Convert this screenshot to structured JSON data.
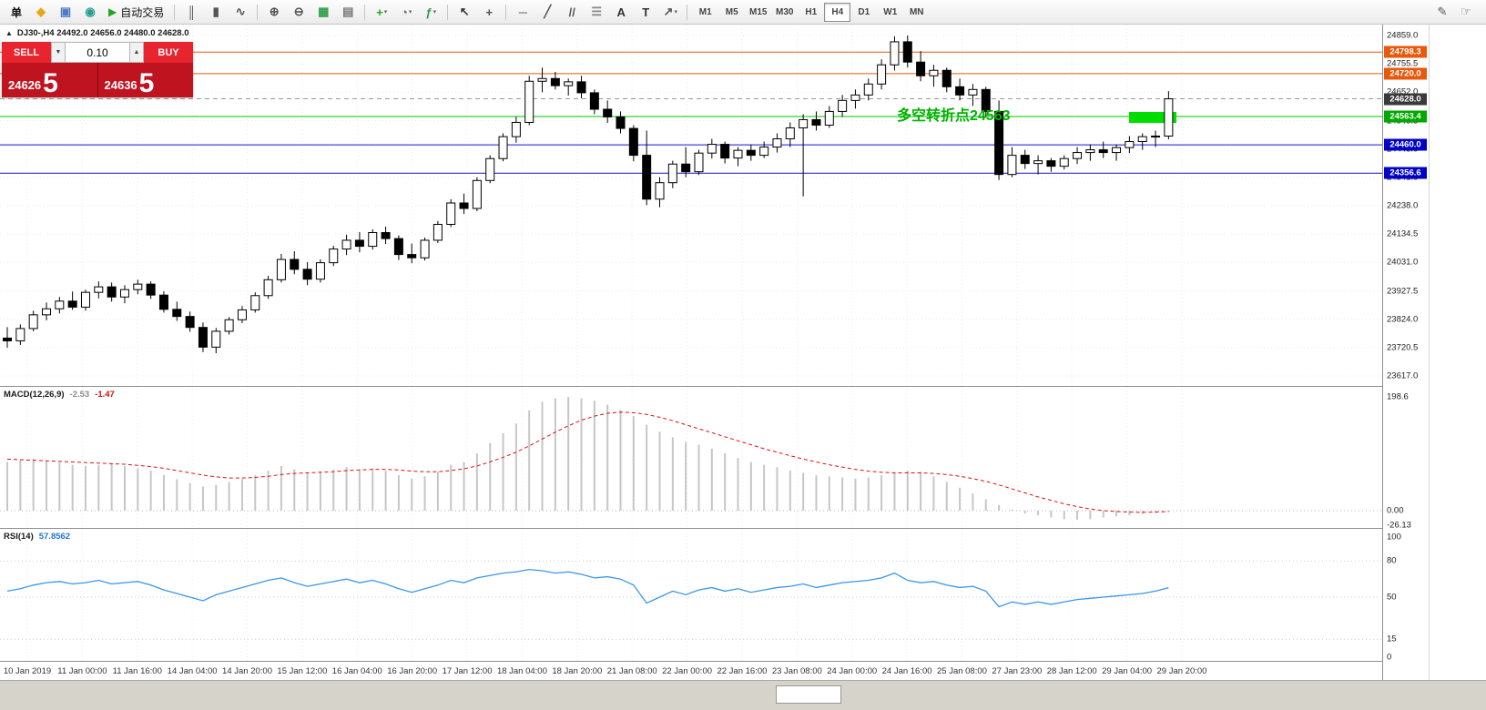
{
  "toolbar": {
    "items": [
      {
        "type": "label",
        "name": "order-label",
        "text": "单"
      },
      {
        "type": "icon",
        "name": "new-order-icon",
        "glyph": "◆",
        "color": "#e6a817"
      },
      {
        "type": "icon",
        "name": "terminal-icon",
        "glyph": "▣",
        "color": "#4d79c7"
      },
      {
        "type": "icon",
        "name": "market-watch-icon",
        "glyph": "◉",
        "color": "#2a9d8f"
      },
      {
        "type": "button",
        "name": "auto-trading-button",
        "glyph": "▶",
        "glyph_color": "#1caa1c",
        "text": "自动交易"
      },
      {
        "type": "sep"
      },
      {
        "type": "icon",
        "name": "ohlc-bars-icon",
        "glyph": "║",
        "color": "#555555"
      },
      {
        "type": "icon",
        "name": "candlestick-chart-icon",
        "glyph": "▮",
        "color": "#555555"
      },
      {
        "type": "icon",
        "name": "line-chart-icon",
        "glyph": "∿",
        "color": "#555555"
      },
      {
        "type": "sep"
      },
      {
        "type": "icon",
        "name": "zoom-in-icon",
        "glyph": "⊕",
        "color": "#555555"
      },
      {
        "type": "icon",
        "name": "zoom-out-icon",
        "glyph": "⊖",
        "color": "#555555"
      },
      {
        "type": "icon",
        "name": "tile-windows-icon",
        "glyph": "▦",
        "color": "#2f9e44"
      },
      {
        "type": "icon",
        "name": "cascade-windows-icon",
        "glyph": "▤",
        "color": "#777777"
      },
      {
        "type": "sep"
      },
      {
        "type": "icon",
        "name": "new-chart-icon",
        "glyph": "+",
        "color": "#1caa1c",
        "dropdown": true
      },
      {
        "type": "icon",
        "name": "periods-icon",
        "glyph": "◔",
        "color": "#666666",
        "dropdown": true
      },
      {
        "type": "icon",
        "name": "indicators-icon",
        "glyph": "ƒ",
        "color": "#2f9e44",
        "dropdown": true
      },
      {
        "type": "sep"
      },
      {
        "type": "icon",
        "name": "cursor-icon",
        "glyph": "↖",
        "color": "#333333"
      },
      {
        "type": "icon",
        "name": "crosshair-icon",
        "glyph": "+",
        "color": "#555555"
      },
      {
        "type": "sep"
      },
      {
        "type": "icon",
        "name": "horizontal-line-icon",
        "glyph": "─",
        "color": "#555555"
      },
      {
        "type": "icon",
        "name": "trendline-icon",
        "glyph": "╱",
        "color": "#555555"
      },
      {
        "type": "icon",
        "name": "equidistant-channel-icon",
        "glyph": "//",
        "color": "#555555"
      },
      {
        "type": "icon",
        "name": "fibonacci-icon",
        "glyph": "☰",
        "color": "#888888"
      },
      {
        "type": "icon",
        "name": "text-icon",
        "glyph": "A",
        "color": "#333333"
      },
      {
        "type": "icon",
        "name": "text-label-icon",
        "glyph": "T",
        "color": "#333333"
      },
      {
        "type": "icon",
        "name": "arrows-icon",
        "glyph": "↗",
        "color": "#555555",
        "dropdown": true
      },
      {
        "type": "sep"
      }
    ],
    "timeframes": [
      {
        "label": "M1"
      },
      {
        "label": "M5"
      },
      {
        "label": "M15"
      },
      {
        "label": "M30"
      },
      {
        "label": "H1"
      },
      {
        "label": "H4",
        "active": true
      },
      {
        "label": "D1"
      },
      {
        "label": "W1"
      },
      {
        "label": "MN"
      }
    ],
    "right_icons": [
      {
        "name": "pencil-icon",
        "glyph": "✎"
      },
      {
        "name": "hand-icon",
        "glyph": "☞"
      }
    ]
  },
  "chart": {
    "panel_toggle_glyph": "▲",
    "header": "DJ30-,H4 24492.0 24656.0 24480.0 24628.0",
    "trade_panel": {
      "sell_label": "SELL",
      "buy_label": "BUY",
      "volume": "0.10",
      "spin_down_glyph": "▼",
      "spin_up_glyph": "▲",
      "sell_price_small": "24626",
      "sell_price_big": "5",
      "buy_price_small": "24636",
      "buy_price_big": "5"
    },
    "annotation": {
      "text": "多空转折点24563",
      "color": "#00b300"
    },
    "hlines": [
      {
        "price": 24798.3,
        "color": "#e8590c",
        "label": "24798.3"
      },
      {
        "price": 24720.0,
        "color": "#e8590c",
        "label": "24720.0"
      },
      {
        "price": 24628.0,
        "color": "#999999",
        "label": "24628.0",
        "style": "dashed",
        "tag_color": "#3a3a3a"
      },
      {
        "price": 24563.4,
        "color": "#00c400",
        "label": "24563.4",
        "tag_color": "#00a800"
      },
      {
        "price": 24460.0,
        "color": "#1414cc",
        "label": "24460.0",
        "tag_color": "#0000c8"
      },
      {
        "price": 24356.6,
        "color": "#1414cc",
        "label": "24356.6",
        "tag_color": "#0000c8"
      }
    ],
    "axis_labels": [
      "24859.0",
      "24755.5",
      "24652.0",
      "24548.5",
      "24445.0",
      "24341.5",
      "24238.0",
      "24134.5",
      "24031.0",
      "23927.5",
      "23824.0",
      "23720.5",
      "23617.0"
    ],
    "green_box": {
      "price_low": 24540,
      "price_high": 24580,
      "color": "#00dd00"
    }
  },
  "chart_data": {
    "type": "candlestick",
    "symbol": "DJ30-",
    "timeframe": "H4",
    "ohlc_current": {
      "open": 24492.0,
      "high": 24656.0,
      "low": 24480.0,
      "close": 24628.0
    },
    "y_range": [
      23617.0,
      24859.0
    ],
    "time_labels": [
      "10 Jan 2019",
      "11 Jan 00:00",
      "11 Jan 16:00",
      "14 Jan 04:00",
      "14 Jan 20:00",
      "15 Jan 12:00",
      "16 Jan 04:00",
      "16 Jan 20:00",
      "17 Jan 12:00",
      "18 Jan 04:00",
      "18 Jan 20:00",
      "21 Jan 08:00",
      "22 Jan 00:00",
      "22 Jan 16:00",
      "23 Jan 08:00",
      "24 Jan 00:00",
      "24 Jan 16:00",
      "25 Jan 08:00",
      "27 Jan 23:00",
      "28 Jan 12:00",
      "29 Jan 04:00",
      "29 Jan 20:00"
    ],
    "candles": [
      [
        23755,
        23795,
        23720,
        23745
      ],
      [
        23745,
        23805,
        23730,
        23790
      ],
      [
        23790,
        23855,
        23780,
        23840
      ],
      [
        23840,
        23885,
        23820,
        23862
      ],
      [
        23862,
        23905,
        23845,
        23890
      ],
      [
        23890,
        23925,
        23858,
        23868
      ],
      [
        23868,
        23932,
        23855,
        23922
      ],
      [
        23922,
        23962,
        23900,
        23942
      ],
      [
        23942,
        23958,
        23888,
        23905
      ],
      [
        23905,
        23948,
        23882,
        23932
      ],
      [
        23932,
        23968,
        23915,
        23952
      ],
      [
        23952,
        23962,
        23898,
        23912
      ],
      [
        23912,
        23926,
        23848,
        23860
      ],
      [
        23860,
        23888,
        23818,
        23834
      ],
      [
        23834,
        23852,
        23778,
        23794
      ],
      [
        23794,
        23812,
        23704,
        23722
      ],
      [
        23722,
        23792,
        23700,
        23780
      ],
      [
        23780,
        23832,
        23768,
        23822
      ],
      [
        23822,
        23872,
        23810,
        23858
      ],
      [
        23858,
        23922,
        23848,
        23910
      ],
      [
        23910,
        23982,
        23898,
        23968
      ],
      [
        23968,
        24062,
        23958,
        24042
      ],
      [
        24042,
        24072,
        23988,
        24006
      ],
      [
        24006,
        24032,
        23948,
        23970
      ],
      [
        23970,
        24042,
        23958,
        24030
      ],
      [
        24030,
        24092,
        24018,
        24080
      ],
      [
        24080,
        24132,
        24058,
        24112
      ],
      [
        24112,
        24142,
        24068,
        24090
      ],
      [
        24090,
        24152,
        24078,
        24140
      ],
      [
        24140,
        24162,
        24098,
        24118
      ],
      [
        24118,
        24130,
        24040,
        24060
      ],
      [
        24060,
        24100,
        24028,
        24048
      ],
      [
        24048,
        24122,
        24038,
        24112
      ],
      [
        24112,
        24182,
        24102,
        24170
      ],
      [
        24170,
        24262,
        24160,
        24248
      ],
      [
        24248,
        24282,
        24208,
        24228
      ],
      [
        24228,
        24342,
        24218,
        24330
      ],
      [
        24330,
        24422,
        24320,
        24410
      ],
      [
        24410,
        24502,
        24400,
        24490
      ],
      [
        24490,
        24562,
        24468,
        24542
      ],
      [
        24542,
        24712,
        24532,
        24692
      ],
      [
        24692,
        24742,
        24652,
        24702
      ],
      [
        24702,
        24726,
        24662,
        24676
      ],
      [
        24676,
        24702,
        24640,
        24690
      ],
      [
        24690,
        24712,
        24630,
        24650
      ],
      [
        24650,
        24662,
        24572,
        24590
      ],
      [
        24590,
        24622,
        24540,
        24562
      ],
      [
        24562,
        24582,
        24502,
        24520
      ],
      [
        24520,
        24532,
        24400,
        24422
      ],
      [
        24422,
        24512,
        24240,
        24262
      ],
      [
        24262,
        24342,
        24232,
        24322
      ],
      [
        24322,
        24402,
        24302,
        24390
      ],
      [
        24390,
        24452,
        24342,
        24362
      ],
      [
        24362,
        24442,
        24350,
        24430
      ],
      [
        24430,
        24482,
        24410,
        24462
      ],
      [
        24462,
        24472,
        24392,
        24412
      ],
      [
        24412,
        24452,
        24382,
        24440
      ],
      [
        24440,
        24462,
        24402,
        24422
      ],
      [
        24422,
        24472,
        24412,
        24452
      ],
      [
        24452,
        24502,
        24432,
        24482
      ],
      [
        24482,
        24542,
        24452,
        24522
      ],
      [
        24522,
        24572,
        24272,
        24552
      ],
      [
        24552,
        24582,
        24512,
        24532
      ],
      [
        24532,
        24602,
        24522,
        24582
      ],
      [
        24582,
        24642,
        24562,
        24622
      ],
      [
        24622,
        24662,
        24592,
        24642
      ],
      [
        24642,
        24702,
        24622,
        24682
      ],
      [
        24682,
        24772,
        24662,
        24752
      ],
      [
        24752,
        24856,
        24732,
        24836
      ],
      [
        24836,
        24859,
        24742,
        24762
      ],
      [
        24762,
        24802,
        24692,
        24712
      ],
      [
        24712,
        24752,
        24672,
        24732
      ],
      [
        24732,
        24742,
        24652,
        24672
      ],
      [
        24672,
        24702,
        24622,
        24642
      ],
      [
        24642,
        24682,
        24602,
        24662
      ],
      [
        24662,
        24672,
        24562,
        24582
      ],
      [
        24582,
        24622,
        24332,
        24352
      ],
      [
        24352,
        24452,
        24342,
        24422
      ],
      [
        24422,
        24442,
        24372,
        24392
      ],
      [
        24392,
        24422,
        24352,
        24402
      ],
      [
        24402,
        24412,
        24362,
        24382
      ],
      [
        24382,
        24422,
        24370,
        24410
      ],
      [
        24410,
        24452,
        24390,
        24432
      ],
      [
        24432,
        24462,
        24402,
        24442
      ],
      [
        24442,
        24472,
        24412,
        24432
      ],
      [
        24432,
        24462,
        24402,
        24450
      ],
      [
        24450,
        24492,
        24430,
        24472
      ],
      [
        24472,
        24502,
        24442,
        24490
      ],
      [
        24490,
        24512,
        24452,
        24492
      ],
      [
        24492,
        24656,
        24480,
        24628
      ]
    ],
    "indicators": {
      "macd": {
        "name": "MACD(12,26,9)",
        "value_main": "-2.53",
        "value_signal": "-1.47",
        "axis": [
          "198.6",
          "0.00",
          "-26.13"
        ],
        "histogram": [
          85,
          88,
          90,
          87,
          84,
          80,
          78,
          80,
          82,
          78,
          74,
          70,
          62,
          55,
          48,
          42,
          45,
          50,
          55,
          62,
          70,
          78,
          72,
          66,
          68,
          72,
          76,
          72,
          74,
          70,
          62,
          56,
          60,
          68,
          80,
          85,
          100,
          118,
          135,
          152,
          175,
          190,
          196,
          198.6,
          196,
          192,
          185,
          176,
          165,
          150,
          138,
          128,
          120,
          115,
          108,
          100,
          92,
          85,
          80,
          76,
          70,
          66,
          62,
          60,
          58,
          56,
          58,
          62,
          66,
          70,
          68,
          60,
          50,
          40,
          30,
          20,
          10,
          2,
          -5,
          -8,
          -12,
          -15,
          -16,
          -15,
          -12,
          -10,
          -8,
          -6,
          -4,
          -2.53
        ],
        "signal": [
          90,
          89,
          88,
          87,
          86,
          85,
          84,
          83,
          82,
          81,
          79,
          77,
          74,
          70,
          66,
          62,
          59,
          57,
          57,
          58,
          60,
          63,
          65,
          66,
          67,
          68,
          70,
          71,
          72,
          72,
          71,
          69,
          68,
          68,
          70,
          73,
          78,
          85,
          93,
          102,
          113,
          125,
          137,
          148,
          158,
          165,
          170,
          172,
          171,
          168,
          163,
          157,
          150,
          143,
          136,
          129,
          122,
          115,
          108,
          102,
          96,
          90,
          85,
          80,
          76,
          72,
          69,
          67,
          66,
          66,
          66,
          65,
          63,
          60,
          56,
          51,
          45,
          38,
          31,
          24,
          18,
          12,
          7,
          3,
          0,
          -1.5,
          -2.5,
          -3,
          -2.5,
          -1.47
        ]
      },
      "rsi": {
        "name": "RSI(14)",
        "value": "57.8562",
        "axis": [
          "100",
          "80",
          "50",
          "15",
          "0"
        ],
        "levels": [
          80,
          50,
          15
        ],
        "values": [
          55,
          57,
          60,
          62,
          63,
          61,
          62,
          64,
          61,
          62,
          63,
          60,
          56,
          53,
          50,
          47,
          52,
          55,
          58,
          61,
          64,
          66,
          62,
          59,
          61,
          63,
          65,
          62,
          64,
          61,
          57,
          54,
          57,
          60,
          64,
          62,
          66,
          68,
          70,
          71,
          73,
          72,
          70,
          71,
          69,
          66,
          67,
          65,
          60,
          45,
          50,
          55,
          52,
          56,
          58,
          55,
          57,
          54,
          56,
          58,
          59,
          61,
          58,
          60,
          62,
          63,
          64,
          66,
          70,
          64,
          62,
          63,
          60,
          58,
          59,
          55,
          42,
          46,
          44,
          46,
          44,
          46,
          48,
          49,
          50,
          51,
          52,
          53,
          55,
          57.86
        ]
      }
    }
  }
}
